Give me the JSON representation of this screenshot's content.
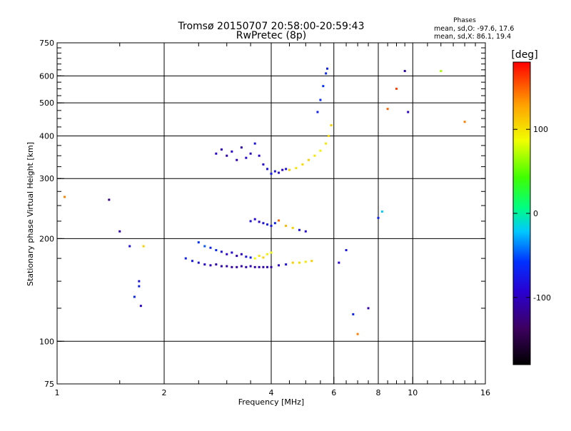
{
  "chart_data": {
    "type": "scatter",
    "title": "Tromsø 20150707 20:58:00-20:59:43",
    "subtitle": "RwPretec (8p)",
    "info_title": "Phases",
    "info_lines": [
      "mean, sd,O: -97.6, 17.6",
      "mean, sd,X:  86.1, 19.4"
    ],
    "xlabel": "Frequency [MHz]",
    "ylabel": "Stationary phase Virtual Height [km]",
    "x_scale": "log",
    "y_scale": "log",
    "xlim": [
      1,
      16
    ],
    "ylim": [
      75,
      750
    ],
    "x_ticks": [
      1,
      2,
      4,
      6,
      8,
      10,
      16
    ],
    "x_tick_labels": [
      "1",
      "2",
      "4",
      "6",
      "8",
      "10",
      "16"
    ],
    "y_ticks": [
      75,
      100,
      200,
      300,
      400,
      500,
      600,
      750
    ],
    "y_tick_labels": [
      "75",
      "100",
      "200",
      "300",
      "400",
      "500",
      "600",
      "750"
    ],
    "x_gridlines": [
      2,
      4,
      6,
      8,
      10
    ],
    "y_gridlines": [
      100,
      200,
      300,
      400,
      500,
      600
    ],
    "grid": true,
    "colorbar": {
      "label": "[deg]",
      "range": [
        -180,
        180
      ],
      "ticks": [
        -100,
        0,
        100
      ],
      "tick_labels": [
        "-100",
        "0",
        "100"
      ]
    },
    "series": [
      {
        "x": [
          2.3,
          2.4,
          2.5,
          2.6,
          2.7,
          2.8,
          2.9,
          3.0,
          3.1,
          3.2,
          3.3,
          3.4,
          3.5,
          3.6,
          3.7,
          3.8,
          3.9,
          4.0,
          4.2,
          4.4,
          4.6,
          4.8,
          5.0,
          5.2
        ],
        "y": [
          175,
          172,
          170,
          168,
          167,
          168,
          166,
          166,
          165,
          165,
          166,
          165,
          166,
          165,
          165,
          165,
          165,
          165,
          167,
          168,
          170,
          170,
          171,
          172
        ],
        "phase": [
          -90,
          -95,
          -100,
          -110,
          -115,
          -120,
          -118,
          -120,
          -122,
          -120,
          -118,
          -120,
          -115,
          -120,
          -118,
          -120,
          -115,
          -120,
          -110,
          -100,
          110,
          105,
          100,
          110
        ]
      },
      {
        "x": [
          2.5,
          2.6,
          2.7,
          2.8,
          2.9,
          3.0,
          3.1,
          3.2,
          3.3,
          3.4,
          3.5,
          3.6,
          3.7,
          3.8,
          3.9,
          4.0
        ],
        "y": [
          195,
          190,
          188,
          185,
          183,
          180,
          182,
          178,
          180,
          177,
          176,
          175,
          178,
          176,
          180,
          182
        ],
        "phase": [
          -80,
          -70,
          -90,
          -85,
          -100,
          -110,
          -105,
          -115,
          -110,
          -100,
          -90,
          90,
          100,
          110,
          95,
          90
        ]
      },
      {
        "x": [
          3.5,
          3.6,
          3.7,
          3.8,
          3.9,
          4.0,
          4.1,
          4.2,
          4.4,
          4.6,
          4.8,
          5.0
        ],
        "y": [
          225,
          228,
          224,
          222,
          220,
          218,
          222,
          226,
          218,
          215,
          212,
          210
        ],
        "phase": [
          -100,
          -105,
          -110,
          -100,
          -95,
          -100,
          -90,
          150,
          120,
          110,
          -100,
          -105
        ]
      },
      {
        "x": [
          2.8,
          2.9,
          3.0,
          3.1,
          3.2,
          3.3,
          3.4,
          3.5,
          3.6,
          3.7,
          3.8,
          3.9,
          4.0,
          4.1,
          4.2,
          4.3,
          4.4
        ],
        "y": [
          355,
          365,
          350,
          360,
          340,
          370,
          345,
          355,
          380,
          350,
          330,
          320,
          310,
          315,
          312,
          318,
          320
        ],
        "phase": [
          -110,
          -115,
          -120,
          -110,
          -115,
          -120,
          -105,
          -110,
          -100,
          -110,
          -105,
          -100,
          -95,
          -100,
          -105,
          -110,
          -100
        ]
      },
      {
        "x": [
          4.5,
          4.7,
          4.9,
          5.1,
          5.3,
          5.5,
          5.7,
          5.8,
          5.9
        ],
        "y": [
          318,
          322,
          330,
          340,
          350,
          362,
          380,
          400,
          430
        ],
        "phase": [
          110,
          100,
          105,
          110,
          100,
          95,
          100,
          105,
          110
        ]
      },
      {
        "x": [
          5.4,
          5.5,
          5.6,
          5.7,
          5.75
        ],
        "y": [
          470,
          510,
          560,
          610,
          630
        ],
        "phase": [
          -90,
          -85,
          -80,
          -85,
          -90
        ]
      },
      {
        "x": [
          1.05,
          1.4,
          1.5,
          1.6,
          1.65,
          1.7,
          1.7,
          1.72,
          1.75,
          6.2,
          6.5,
          6.8,
          7.0,
          7.5,
          8.0,
          8.2,
          8.5,
          9.0,
          9.5,
          9.7,
          12.0,
          14.0
        ],
        "y": [
          265,
          260,
          210,
          190,
          135,
          150,
          145,
          127,
          190,
          170,
          185,
          120,
          105,
          125,
          230,
          240,
          480,
          550,
          620,
          470,
          620,
          440
        ],
        "phase": [
          140,
          -130,
          -120,
          -100,
          -90,
          -100,
          -90,
          -110,
          110,
          -110,
          -100,
          -90,
          140,
          -120,
          -90,
          -40,
          150,
          160,
          -120,
          -110,
          70,
          140
        ]
      }
    ]
  },
  "colors": {
    "gridline": "#000000",
    "phase_gradient": [
      "#000000",
      "#400040",
      "#3000c0",
      "#0000ff",
      "#00d0ff",
      "#00ff60",
      "#00ff00",
      "#ffff00",
      "#ffa000",
      "#ff0000"
    ]
  }
}
